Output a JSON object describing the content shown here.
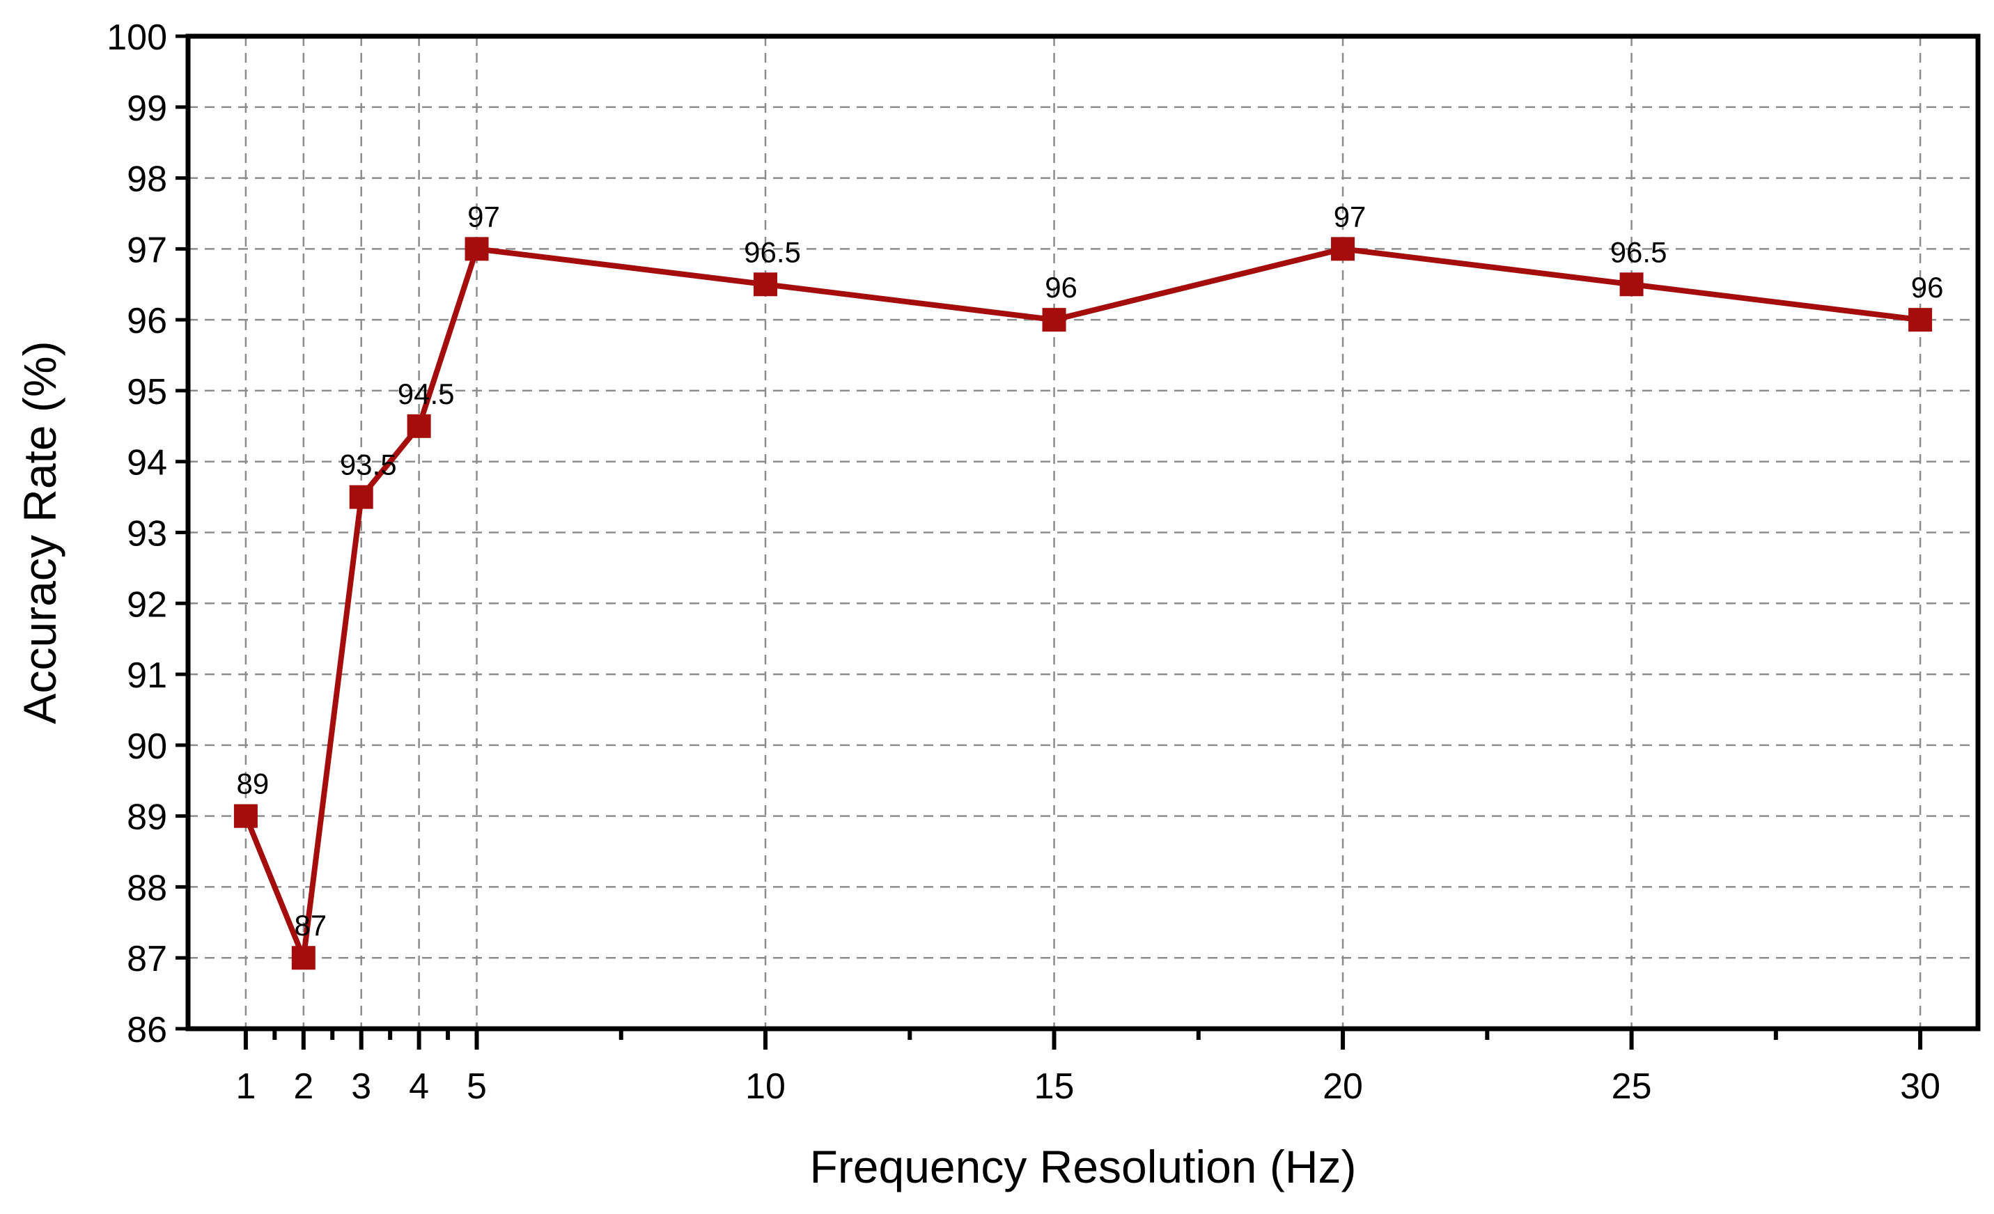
{
  "chart_data": {
    "type": "line",
    "xlabel": "Frequency Resolution (Hz)",
    "ylabel": "Accuracy Rate (%)",
    "x": [
      1,
      2,
      3,
      4,
      5,
      10,
      15,
      20,
      25,
      30
    ],
    "series": [
      {
        "values": [
          89,
          87,
          93.5,
          94.5,
          97,
          96.5,
          96,
          97,
          96.5,
          96
        ],
        "data_labels": [
          "89",
          "87",
          "93.5",
          "94.5",
          "97",
          "96.5",
          "96",
          "97",
          "96.5",
          "96"
        ],
        "color": "#a50d0d",
        "marker": "square"
      }
    ],
    "xlim": [
      0.0,
      31.0
    ],
    "ylim": [
      86,
      100
    ],
    "x_ticks": [
      1,
      2,
      3,
      4,
      5,
      10,
      15,
      20,
      25,
      30
    ],
    "x_tick_labels": [
      "1",
      "2",
      "3",
      "4",
      "5",
      "10",
      "15",
      "20",
      "25",
      "30"
    ],
    "x_minor_ticks": [
      1.5,
      2.5,
      3.5,
      4.5,
      7.5,
      12.5,
      17.5,
      22.5,
      27.5
    ],
    "y_ticks": [
      86,
      87,
      88,
      89,
      90,
      91,
      92,
      93,
      94,
      95,
      96,
      97,
      98,
      99,
      100
    ],
    "y_tick_labels": [
      "86",
      "87",
      "88",
      "89",
      "90",
      "91",
      "92",
      "93",
      "94",
      "95",
      "96",
      "97",
      "98",
      "99",
      "100"
    ],
    "grid": true,
    "grid_style": "dashed",
    "legend": false
  }
}
